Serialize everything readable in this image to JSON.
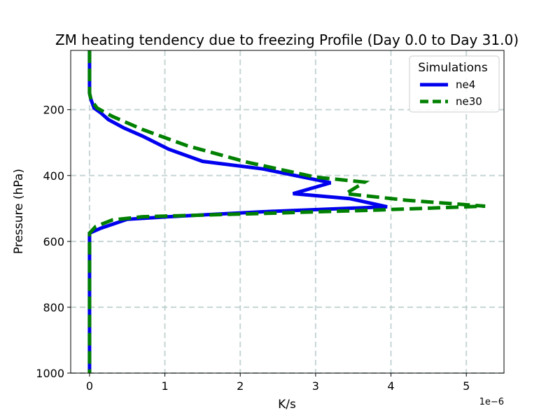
{
  "chart_data": {
    "type": "line",
    "title": "ZM heating tendency due to freezing Profile (Day 0.0 to Day 31.0)",
    "xlabel": "K/s",
    "ylabel": "Pressure (hPa)",
    "x_scale_label": "1e−6",
    "xlim": [
      -0.25,
      5.5
    ],
    "ylim": [
      1000,
      20
    ],
    "y_inverted": true,
    "grid": true,
    "x_ticks": [
      0,
      1,
      2,
      3,
      4,
      5
    ],
    "x_tick_labels": [
      "0",
      "1",
      "2",
      "3",
      "4",
      "5"
    ],
    "y_ticks": [
      200,
      400,
      600,
      800,
      1000
    ],
    "y_tick_labels": [
      "200",
      "400",
      "600",
      "800",
      "1000"
    ],
    "legend": {
      "title": "Simulations",
      "position": "top-right"
    },
    "series": [
      {
        "name": "ne4",
        "color": "#0000ee",
        "style": "solid",
        "points": [
          [
            0,
            20
          ],
          [
            0,
            100
          ],
          [
            0,
            150
          ],
          [
            0.02,
            170
          ],
          [
            0.06,
            195
          ],
          [
            0.15,
            210
          ],
          [
            0.25,
            230
          ],
          [
            0.45,
            255
          ],
          [
            0.7,
            280
          ],
          [
            1.05,
            320
          ],
          [
            1.5,
            357
          ],
          [
            2.3,
            380
          ],
          [
            3.2,
            422
          ],
          [
            2.7,
            455
          ],
          [
            3.45,
            470
          ],
          [
            3.95,
            495
          ],
          [
            2.3,
            510
          ],
          [
            1.05,
            525
          ],
          [
            0.5,
            533
          ],
          [
            0.15,
            560
          ],
          [
            0,
            575
          ],
          [
            0,
            600
          ],
          [
            0,
            800
          ],
          [
            0,
            1000
          ]
        ]
      },
      {
        "name": "ne30",
        "color": "#008000",
        "style": "dashed",
        "points": [
          [
            0,
            20
          ],
          [
            0,
            100
          ],
          [
            0,
            150
          ],
          [
            0.02,
            170
          ],
          [
            0.1,
            195
          ],
          [
            0.3,
            220
          ],
          [
            0.7,
            260
          ],
          [
            1.3,
            310
          ],
          [
            2.1,
            360
          ],
          [
            3.0,
            405
          ],
          [
            3.65,
            420
          ],
          [
            3.4,
            455
          ],
          [
            4.2,
            475
          ],
          [
            5.25,
            493
          ],
          [
            3.8,
            505
          ],
          [
            2.3,
            515
          ],
          [
            0.7,
            525
          ],
          [
            0.3,
            535
          ],
          [
            0.08,
            555
          ],
          [
            0,
            575
          ],
          [
            0,
            600
          ],
          [
            0,
            800
          ],
          [
            0,
            1000
          ]
        ]
      }
    ]
  }
}
